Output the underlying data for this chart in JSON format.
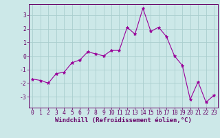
{
  "x": [
    0,
    1,
    2,
    3,
    4,
    5,
    6,
    7,
    8,
    9,
    10,
    11,
    12,
    13,
    14,
    15,
    16,
    17,
    18,
    19,
    20,
    21,
    22,
    23
  ],
  "y": [
    -1.7,
    -1.8,
    -2.0,
    -1.3,
    -1.2,
    -0.5,
    -0.3,
    0.3,
    0.15,
    0.0,
    0.4,
    0.4,
    2.1,
    1.6,
    3.5,
    1.8,
    2.1,
    1.4,
    0.0,
    -0.7,
    -3.2,
    -1.9,
    -3.4,
    -2.9
  ],
  "line_color": "#990099",
  "marker": "*",
  "marker_size": 3.5,
  "bg_color": "#cce8e8",
  "grid_color": "#aacece",
  "xlabel": "Windchill (Refroidissement éolien,°C)",
  "xlabel_color": "#660066",
  "tick_color": "#660066",
  "ylim": [
    -3.8,
    3.8
  ],
  "xlim": [
    -0.5,
    23.5
  ],
  "yticks": [
    -3,
    -2,
    -1,
    0,
    1,
    2,
    3
  ],
  "xticks": [
    0,
    1,
    2,
    3,
    4,
    5,
    6,
    7,
    8,
    9,
    10,
    11,
    12,
    13,
    14,
    15,
    16,
    17,
    18,
    19,
    20,
    21,
    22,
    23
  ],
  "spine_color": "#660066",
  "label_fontsize": 6.5,
  "tick_fontsize": 5.8
}
